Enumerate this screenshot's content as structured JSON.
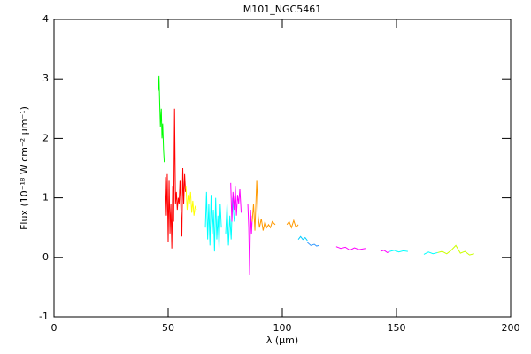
{
  "chart_data": {
    "type": "line",
    "title": "M101_NGC5461",
    "x_label": "λ (μm)",
    "y_label": "Flux (10⁻¹⁸ W cm⁻² μm⁻¹)",
    "xlim": [
      0,
      200
    ],
    "ylim": [
      -1,
      4
    ],
    "xticks": [
      0,
      50,
      100,
      150,
      200
    ],
    "yticks": [
      -1,
      0,
      1,
      2,
      3,
      4
    ],
    "series": [
      {
        "color": "#00ff00",
        "x": [
          45.7,
          46,
          46.3,
          46.6,
          47,
          47.3,
          47.6,
          48,
          48.3
        ],
        "values": [
          2.8,
          3.05,
          2.6,
          2.2,
          2.5,
          2.0,
          2.25,
          1.8,
          1.6
        ]
      },
      {
        "color": "#ff0000",
        "x": [
          48.8,
          49.2,
          49.6,
          50,
          50.4,
          50.8,
          51.2,
          51.6,
          52,
          52.4,
          52.8,
          53.2,
          53.6,
          54,
          54.4,
          54.8,
          55.2,
          55.6,
          56,
          56.4,
          56.8,
          57.2,
          57.6
        ],
        "values": [
          1.35,
          0.7,
          1.4,
          0.25,
          1.3,
          0.4,
          0.9,
          0.15,
          1.2,
          0.6,
          2.5,
          0.9,
          1.1,
          0.8,
          1.0,
          0.9,
          1.3,
          0.8,
          0.35,
          1.5,
          0.9,
          1.4,
          1.1
        ]
      },
      {
        "color": "#ffff00",
        "x": [
          57.8,
          58.3,
          58.8,
          59.3,
          59.8,
          60.3,
          60.8,
          61.3,
          61.8,
          62.4
        ],
        "values": [
          1.2,
          0.8,
          1.05,
          0.9,
          1.1,
          0.75,
          0.95,
          0.7,
          0.85,
          0.8
        ]
      },
      {
        "color": "#00ffff",
        "x": [
          66.3,
          66.8,
          67.3,
          67.8,
          68.3,
          68.8,
          69.3,
          69.8,
          70.3,
          70.8,
          71.3,
          71.8,
          72.3,
          72.8,
          73.3
        ],
        "values": [
          0.5,
          1.1,
          0.3,
          0.9,
          0.2,
          1.05,
          0.4,
          0.8,
          0.1,
          1.0,
          0.3,
          0.7,
          0.15,
          0.9,
          0.5
        ]
      },
      {
        "color": "#00ffff",
        "x": [
          75.2,
          75.8,
          76.4,
          77,
          77.6,
          78.2,
          79
        ],
        "values": [
          0.4,
          0.9,
          0.2,
          0.7,
          0.3,
          1.0,
          0.6
        ]
      },
      {
        "color": "#ff00ff",
        "x": [
          77.4,
          77.9,
          78.4,
          78.9,
          79.4,
          79.9,
          80.4,
          80.9,
          81.4,
          82
        ],
        "values": [
          1.25,
          0.6,
          1.1,
          0.8,
          1.2,
          0.7,
          1.05,
          0.9,
          1.15,
          0.75
        ]
      },
      {
        "color": "#ff00ff",
        "x": [
          84.9,
          85.3,
          85.7,
          86.1,
          86.5,
          86.9
        ],
        "values": [
          0.9,
          0.5,
          -0.3,
          0.8,
          0.4,
          0.7
        ]
      },
      {
        "color": "#ff9900",
        "x": [
          86.8,
          87.4,
          88,
          88.8,
          89.4,
          90,
          90.8,
          91.6,
          92.4,
          93.2,
          94,
          94.8,
          95.6,
          96.9
        ],
        "values": [
          0.6,
          0.9,
          0.45,
          1.3,
          0.7,
          0.5,
          0.65,
          0.45,
          0.6,
          0.5,
          0.55,
          0.5,
          0.6,
          0.55
        ]
      },
      {
        "color": "#ff9900",
        "x": [
          102,
          103,
          104,
          105,
          106,
          107
        ],
        "values": [
          0.55,
          0.6,
          0.5,
          0.62,
          0.5,
          0.55
        ]
      },
      {
        "color": "#00ccff",
        "x": [
          107,
          108,
          109,
          110,
          111
        ],
        "values": [
          0.3,
          0.35,
          0.3,
          0.33,
          0.28
        ]
      },
      {
        "color": "#3399ff",
        "x": [
          111,
          112.5,
          114,
          115,
          116
        ],
        "values": [
          0.25,
          0.2,
          0.22,
          0.19,
          0.2
        ]
      },
      {
        "color": "#ff00ff",
        "x": [
          123.6,
          125.6,
          127.6,
          129.6,
          131.6,
          133.6,
          136.4
        ],
        "values": [
          0.18,
          0.15,
          0.17,
          0.12,
          0.16,
          0.13,
          0.15
        ]
      },
      {
        "color": "#ff00ff",
        "x": [
          143,
          144.5,
          146,
          147
        ],
        "values": [
          0.1,
          0.12,
          0.08,
          0.1
        ]
      },
      {
        "color": "#00ffff",
        "x": [
          147,
          149,
          151,
          153,
          155
        ],
        "values": [
          0.1,
          0.12,
          0.09,
          0.11,
          0.1
        ]
      },
      {
        "color": "#00ffff",
        "x": [
          162,
          164,
          166,
          168
        ],
        "values": [
          0.05,
          0.09,
          0.06,
          0.08
        ]
      },
      {
        "color": "#ccff00",
        "x": [
          168,
          170,
          172,
          174,
          176,
          178,
          180,
          182,
          184
        ],
        "values": [
          0.08,
          0.1,
          0.06,
          0.12,
          0.2,
          0.07,
          0.1,
          0.04,
          0.06
        ]
      }
    ]
  }
}
